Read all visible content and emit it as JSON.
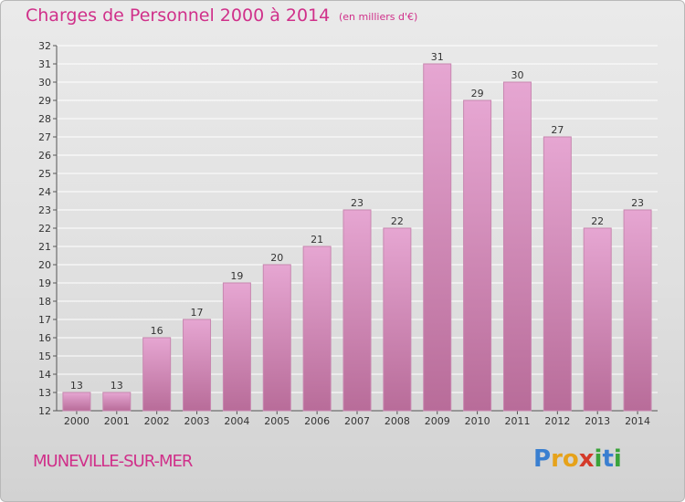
{
  "header": {
    "title": "Charges de Personnel 2000 à 2014",
    "subtitle": "(en milliers d'€)"
  },
  "footer": {
    "city": "MUNEVILLE-SUR-MER",
    "logo_letters": [
      "P",
      "r",
      "o",
      "x",
      "i",
      "t",
      "i"
    ],
    "logo_colors": [
      "#3a7fd0",
      "#e6a21a",
      "#e6a21a",
      "#d43a2a",
      "#3aa33a",
      "#3a7fd0",
      "#3aa33a"
    ]
  },
  "colors": {
    "bar_top": "#e6a6d2",
    "bar_bottom": "#b86c99",
    "bar_border": "#c888b0",
    "grid": "#ffffff",
    "axis_text": "#333333"
  },
  "chart_data": {
    "type": "bar",
    "categories": [
      "2000",
      "2001",
      "2002",
      "2003",
      "2004",
      "2005",
      "2006",
      "2007",
      "2008",
      "2009",
      "2010",
      "2011",
      "2012",
      "2013",
      "2014"
    ],
    "values": [
      13,
      13,
      16,
      17,
      19,
      20,
      21,
      23,
      22,
      31,
      29,
      30,
      27,
      22,
      23
    ],
    "title": "Charges de Personnel 2000 à 2014",
    "ylim": [
      12,
      32
    ],
    "y_ticks": [
      12,
      13,
      14,
      15,
      16,
      17,
      18,
      19,
      20,
      21,
      22,
      23,
      24,
      25,
      26,
      27,
      28,
      29,
      30,
      31,
      32
    ],
    "grid": true,
    "data_labels": true
  }
}
